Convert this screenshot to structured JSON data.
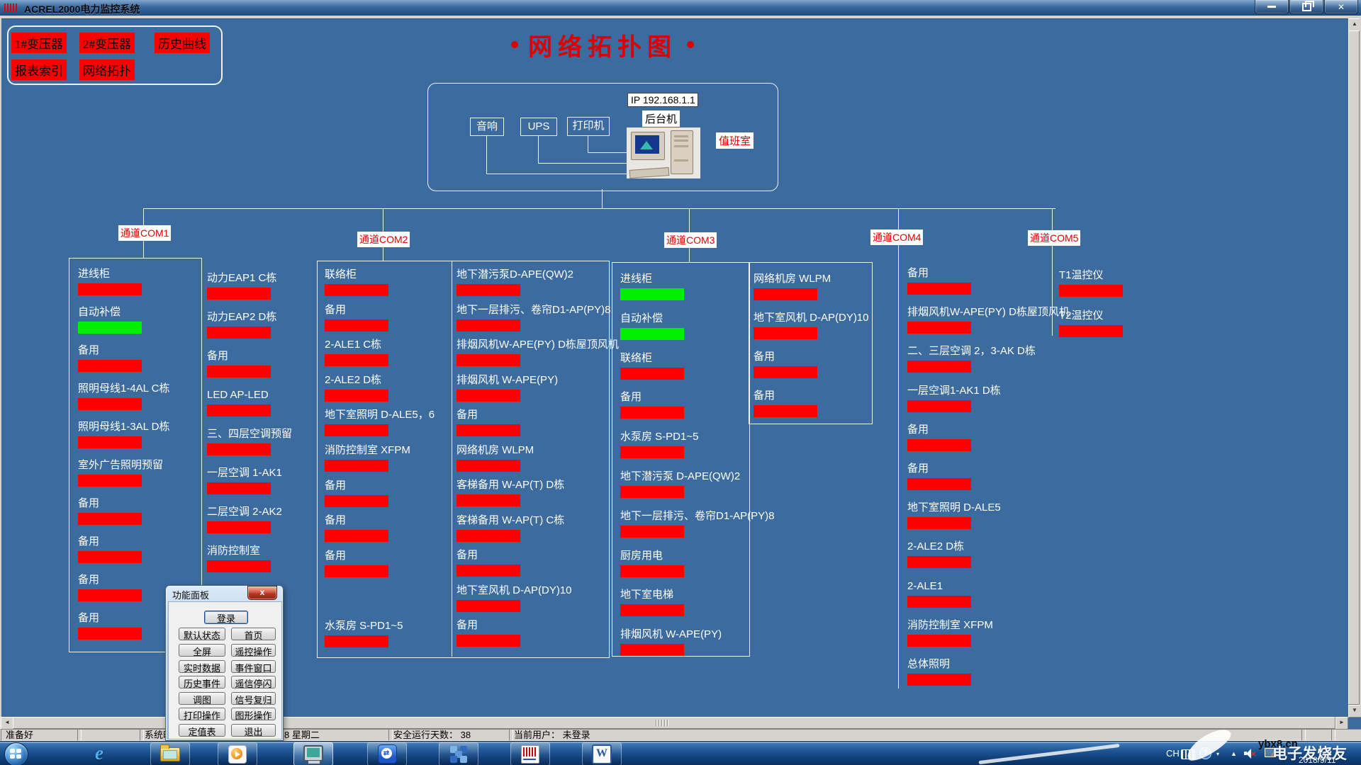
{
  "window": {
    "title": "ACREL2000电力监控系统"
  },
  "nav_buttons": [
    "1#变压器",
    "2#变压器",
    "历史曲线",
    "报表索引",
    "网络拓扑"
  ],
  "page_title": "网络拓扑图",
  "server": {
    "peripherals": [
      "音响",
      "UPS",
      "打印机"
    ],
    "ip": "IP 192.168.1.1",
    "host_label": "后台机",
    "room_label": "值班室"
  },
  "channels": [
    {
      "label": "通道COM1"
    },
    {
      "label": "通道COM2"
    },
    {
      "label": "通道COM3"
    },
    {
      "label": "通道COM4"
    },
    {
      "label": "通道COM5"
    }
  ],
  "status_colors": {
    "red": "#FF0000",
    "green": "#00EE00"
  },
  "columns": {
    "com1a": [
      {
        "label": "进线柜",
        "status": "red"
      },
      {
        "label": "自动补偿",
        "status": "green"
      },
      {
        "label": "备用",
        "status": "red"
      },
      {
        "label": "照明母线1-4AL C栋",
        "status": "red"
      },
      {
        "label": "照明母线1-3AL D栋",
        "status": "red"
      },
      {
        "label": "室外广告照明预留",
        "status": "red"
      },
      {
        "label": "备用",
        "status": "red"
      },
      {
        "label": "备用",
        "status": "red"
      },
      {
        "label": "备用",
        "status": "red"
      },
      {
        "label": "备用",
        "status": "red"
      }
    ],
    "com1b": [
      {
        "label": "动力EAP1  C栋",
        "status": "red"
      },
      {
        "label": "动力EAP2  D栋",
        "status": "red"
      },
      {
        "label": "备用",
        "status": "red"
      },
      {
        "label": "LED  AP-LED",
        "status": "red"
      },
      {
        "label": "三、四层空调预留",
        "status": "red"
      },
      {
        "label": "一层空调  1-AK1",
        "status": "red"
      },
      {
        "label": "二层空调  2-AK2",
        "status": "red"
      },
      {
        "label": "消防控制室",
        "status": "red"
      }
    ],
    "com2a": [
      {
        "label": "联络柜",
        "status": "red"
      },
      {
        "label": "备用",
        "status": "red"
      },
      {
        "label": "2-ALE1  C栋",
        "status": "red"
      },
      {
        "label": "2-ALE2  D栋",
        "status": "red"
      },
      {
        "label": "地下室照明 D-ALE5，6",
        "status": "red"
      },
      {
        "label": "消防控制室 XFPM",
        "status": "red"
      },
      {
        "label": "备用",
        "status": "red"
      },
      {
        "label": "备用",
        "status": "red"
      },
      {
        "label": "备用",
        "status": "red"
      },
      {
        "label": "",
        "status": ""
      },
      {
        "label": "水泵房 S-PD1~5",
        "status": "red"
      }
    ],
    "com2b": [
      {
        "label": "地下潜污泵D-APE(QW)2",
        "status": "red"
      },
      {
        "label": "地下一层排污、卷帘D1-AP(PY)8",
        "status": "red"
      },
      {
        "label": "排烟风机W-APE(PY) D栋屋顶风机",
        "status": "red"
      },
      {
        "label": "排烟风机 W-APE(PY)",
        "status": "red"
      },
      {
        "label": "备用",
        "status": "red"
      },
      {
        "label": "网络机房 WLPM",
        "status": "red"
      },
      {
        "label": "客梯备用 W-AP(T)  D栋",
        "status": "red"
      },
      {
        "label": "客梯备用 W-AP(T)  C栋",
        "status": "red"
      },
      {
        "label": "备用",
        "status": "red"
      },
      {
        "label": "地下室风机 D-AP(DY)10",
        "status": "red"
      },
      {
        "label": "备用",
        "status": "red"
      }
    ],
    "com3a": [
      {
        "label": "进线柜",
        "status": "green"
      },
      {
        "label": "自动补偿",
        "status": "green"
      },
      {
        "label": "联络柜",
        "status": "red"
      },
      {
        "label": "备用",
        "status": "red"
      },
      {
        "label": "水泵房 S-PD1~5",
        "status": "red"
      },
      {
        "label": "地下潜污泵 D-APE(QW)2",
        "status": "red"
      },
      {
        "label": "地下一层排污、卷帘D1-AP(PY)8",
        "status": "red"
      },
      {
        "label": "厨房用电",
        "status": "red"
      },
      {
        "label": "地下室电梯",
        "status": "red"
      },
      {
        "label": "排烟风机 W-APE(PY)",
        "status": "red"
      }
    ],
    "com3b": [
      {
        "label": "网络机房 WLPM",
        "status": "red"
      },
      {
        "label": "地下室风机 D-AP(DY)10",
        "status": "red"
      },
      {
        "label": "备用",
        "status": "red"
      },
      {
        "label": "备用",
        "status": "red"
      }
    ],
    "com4": [
      {
        "label": "备用",
        "status": "red"
      },
      {
        "label": "排烟风机W-APE(PY) D栋屋顶风机",
        "status": "red"
      },
      {
        "label": "二、三层空调 2，3-AK D栋",
        "status": "red"
      },
      {
        "label": "一层空调1-AK1  D栋",
        "status": "red"
      },
      {
        "label": "备用",
        "status": "red"
      },
      {
        "label": "备用",
        "status": "red"
      },
      {
        "label": "地下室照明 D-ALE5",
        "status": "red"
      },
      {
        "label": "2-ALE2 D栋",
        "status": "red"
      },
      {
        "label": "2-ALE1",
        "status": "red"
      },
      {
        "label": "消防控制室 XFPM",
        "status": "red"
      },
      {
        "label": "总体照明",
        "status": "red"
      }
    ],
    "com5": [
      {
        "label": "T1温控仪",
        "status": "red"
      },
      {
        "label": "T2温控仪",
        "status": "red"
      }
    ]
  },
  "dialog": {
    "title": "功能面板",
    "close_glyph": "x",
    "login": "登录",
    "rows": [
      [
        "默认状态",
        "首页"
      ],
      [
        "全屏",
        "遥控操作"
      ],
      [
        "实时数据",
        "事件窗口"
      ],
      [
        "历史事件",
        "遥信停闪"
      ],
      [
        "调图",
        "信号复归"
      ],
      [
        "打印操作",
        "图形操作"
      ],
      [
        "定值表",
        "退出"
      ]
    ]
  },
  "statusbar": {
    "ready": "准备好",
    "time_prefix": "系统时",
    "time_suffix": "8  星期二",
    "safe_days": "安全运行天数： 38",
    "user": "当前用户： 未登录"
  },
  "tray": {
    "input": "CH"
  },
  "icons": {
    "ie": "e",
    "word": "W",
    "teamviewer_arrows": "⇄"
  },
  "watermark": {
    "site": "ybx8.cn",
    "brand": "电子发烧友",
    "date": "2018/9/11"
  }
}
